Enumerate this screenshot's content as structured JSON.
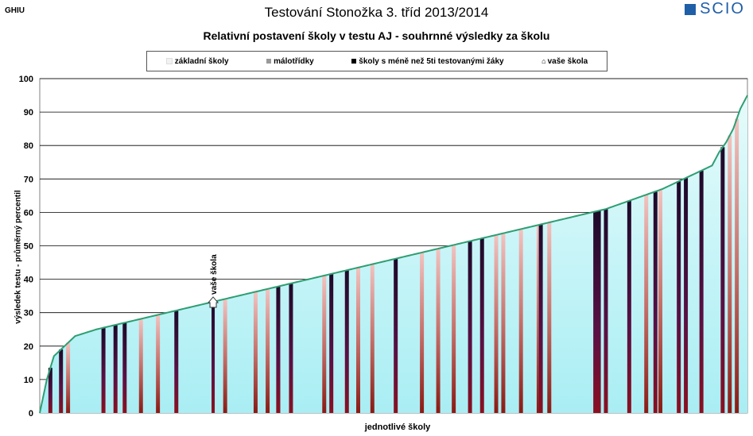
{
  "header": {
    "code": "GHIU",
    "title": "Testování Stonožka 3. tříd 2013/2014",
    "subtitle": "Relativní postavení školy v testu AJ - souhrnné výsledky za školu",
    "logo_text": "SCIO"
  },
  "legend": {
    "items": [
      {
        "label": "základní školy",
        "color": "#f2f2f2"
      },
      {
        "label": "málotřídky",
        "color": "#999999"
      },
      {
        "label": "školy s méně než 5ti testovanými žáky",
        "color": "#000000"
      },
      {
        "label": "vaše škola",
        "icon": "house-icon"
      }
    ]
  },
  "chart_data": {
    "type": "area",
    "xlabel": "jednotlivé školy",
    "ylabel": "výsledek testu - průměrný percentil",
    "ylim": [
      0,
      100
    ],
    "yticks": [
      0,
      10,
      20,
      30,
      40,
      50,
      60,
      70,
      80,
      90,
      100
    ],
    "grid": true,
    "curve": {
      "description": "sorted school results, percentile vs. rank fraction",
      "x": [
        0,
        0.01,
        0.02,
        0.03,
        0.05,
        0.08,
        0.12,
        0.16,
        0.2,
        0.24,
        0.28,
        0.32,
        0.36,
        0.4,
        0.44,
        0.48,
        0.52,
        0.56,
        0.6,
        0.64,
        0.68,
        0.72,
        0.76,
        0.8,
        0.84,
        0.88,
        0.92,
        0.95,
        0.96,
        0.97,
        0.98,
        0.99,
        1.0
      ],
      "y": [
        0,
        10,
        17,
        19,
        23,
        25,
        27,
        29,
        31,
        33,
        35,
        37,
        39,
        41,
        43,
        45,
        47,
        49,
        51,
        53,
        55,
        57,
        59,
        61,
        64,
        67,
        71,
        74,
        78,
        81,
        85,
        91,
        95
      ]
    },
    "highlighted_school": {
      "label": "vaše škola",
      "x": 0.245,
      "y": 33.5
    },
    "small_schools": [
      0.015,
      0.03,
      0.09,
      0.107,
      0.12,
      0.193,
      0.337,
      0.355,
      0.412,
      0.434,
      0.503,
      0.608,
      0.625,
      0.708,
      0.785,
      0.79,
      0.8,
      0.833,
      0.87,
      0.903,
      0.913,
      0.935,
      0.965
    ],
    "small_class_schools": [
      0.04,
      0.143,
      0.167,
      0.305,
      0.322,
      0.337,
      0.402,
      0.45,
      0.47,
      0.54,
      0.563,
      0.585,
      0.645,
      0.655,
      0.68,
      0.705,
      0.72,
      0.857,
      0.877,
      0.975,
      0.985,
      0.262
    ]
  }
}
